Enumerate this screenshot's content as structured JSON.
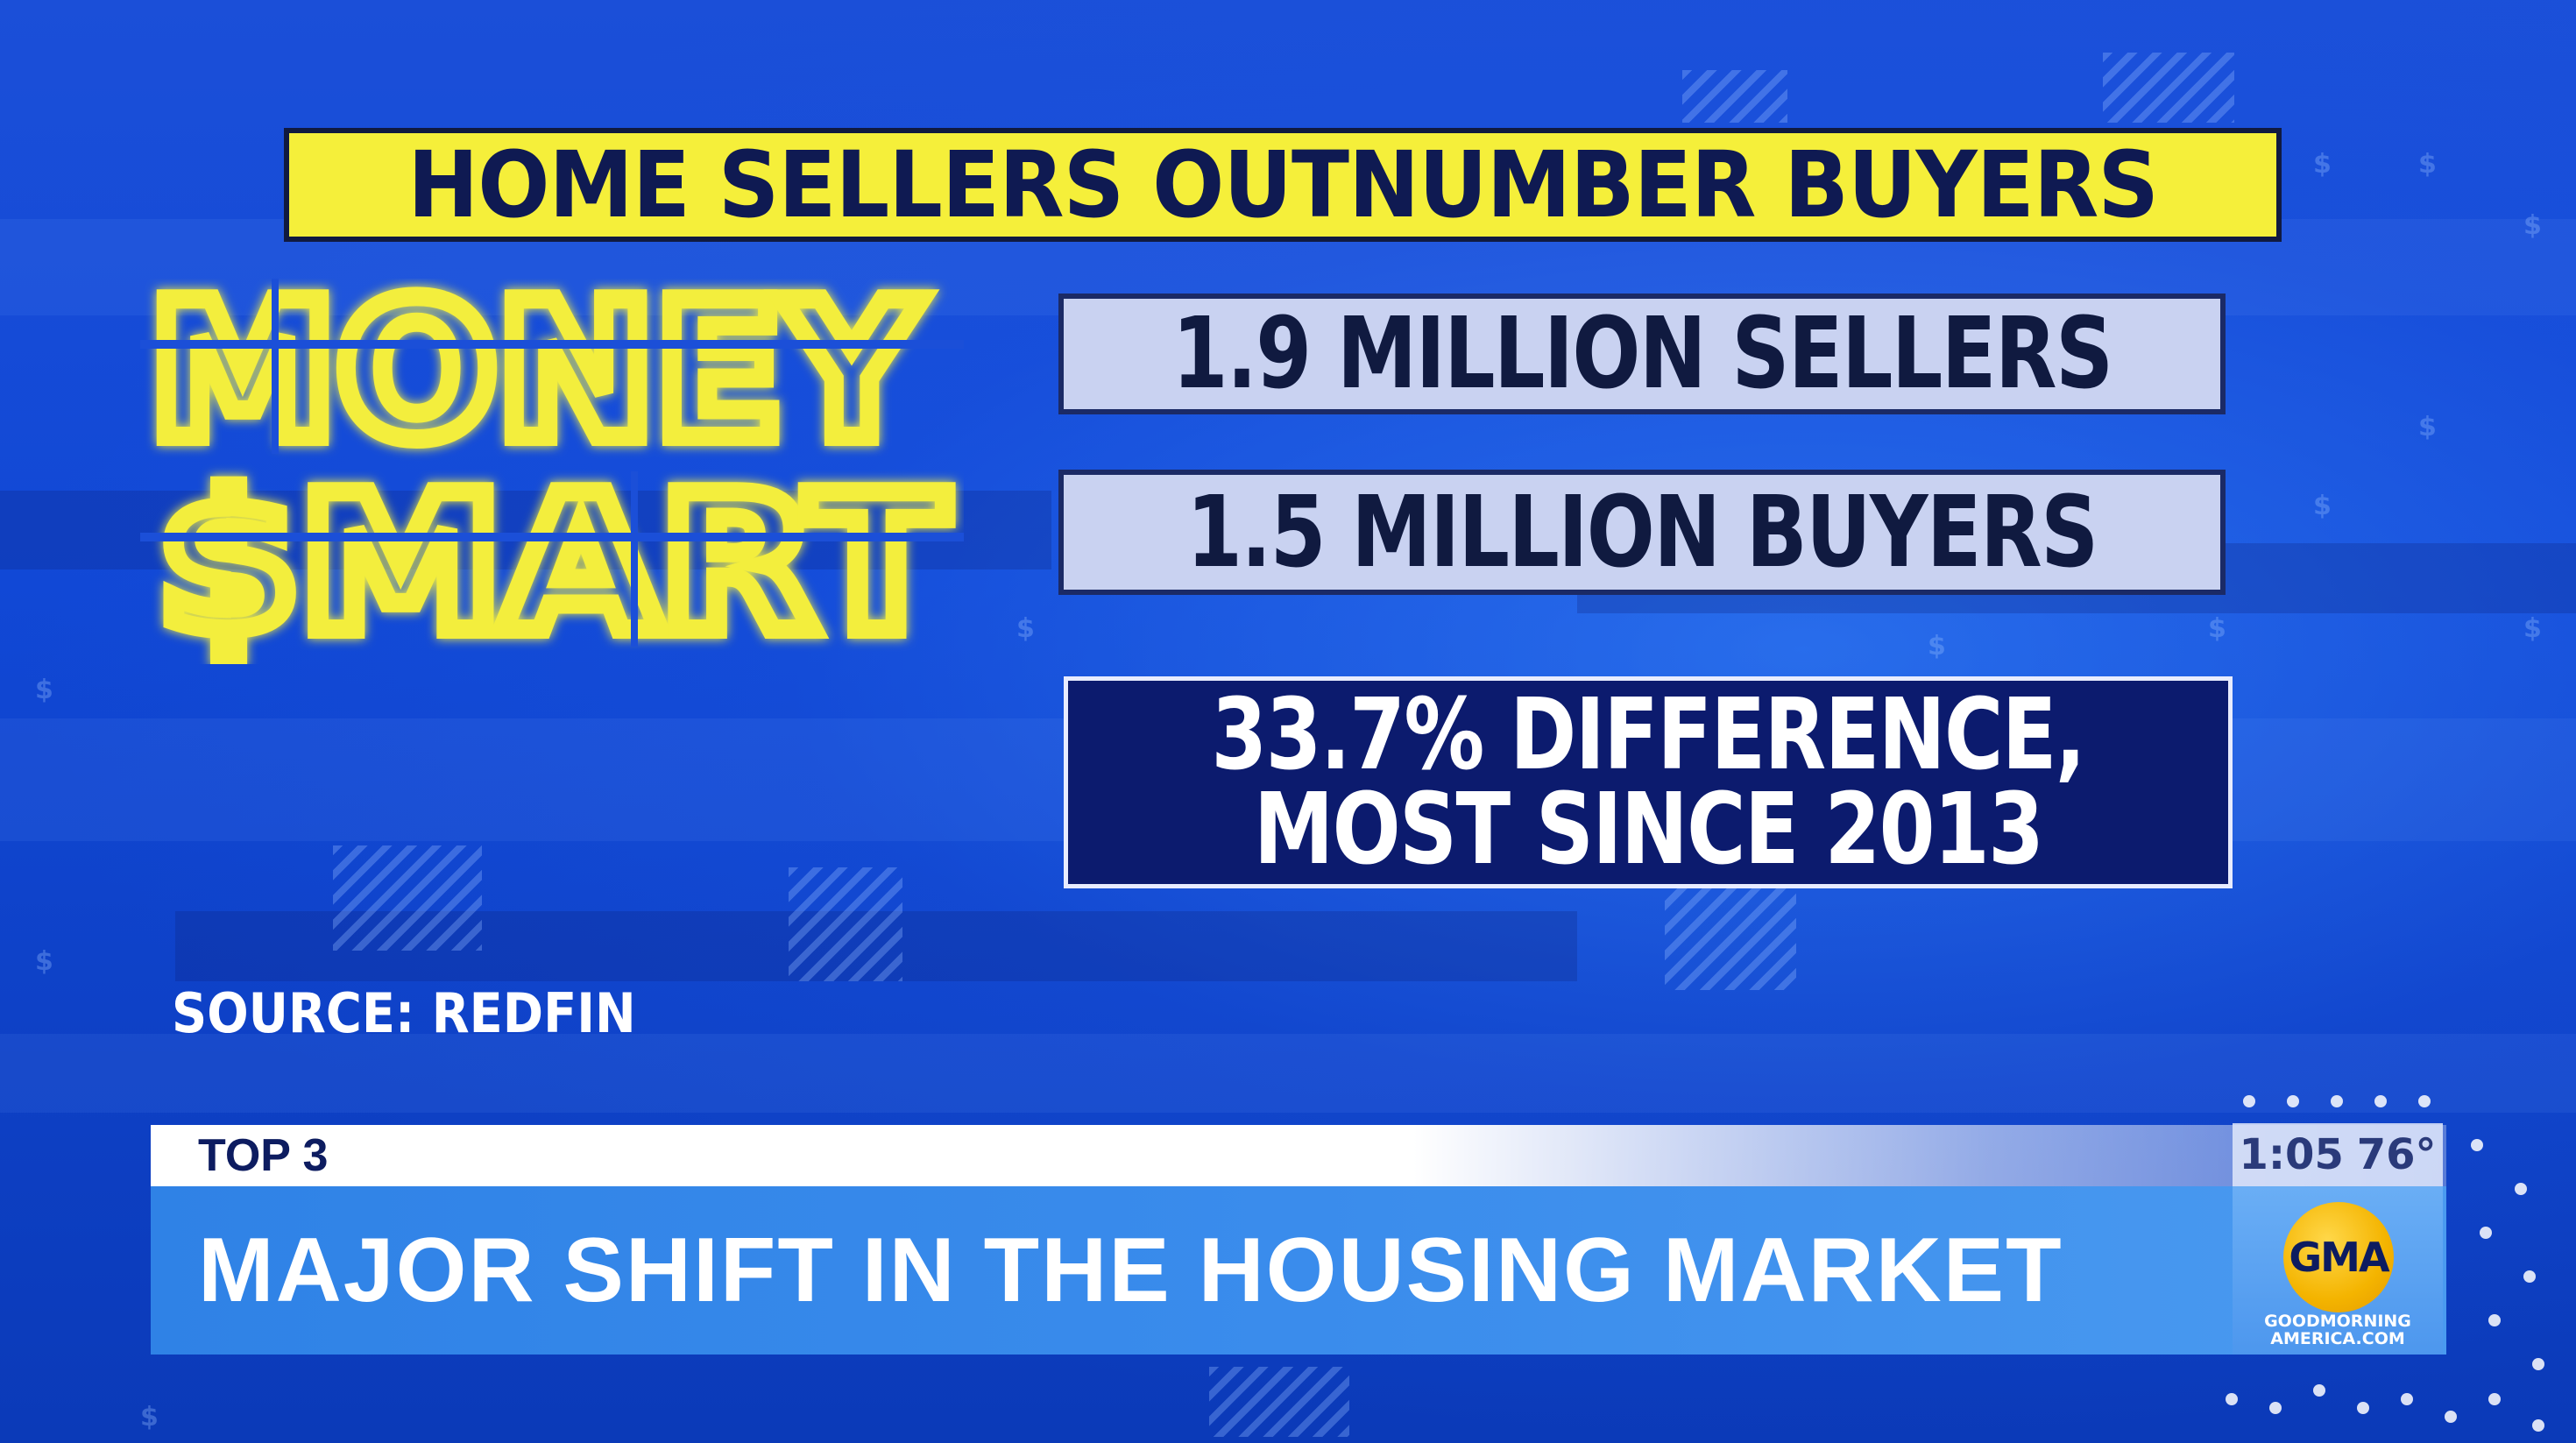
{
  "headline": "HOME SELLERS OUTNUMBER BUYERS",
  "logo": {
    "line1": "MONEY",
    "line2": "$MART",
    "color": "#f3ee3c"
  },
  "stats": [
    {
      "text": "1.9 MILLION SELLERS"
    },
    {
      "text": "1.5 MILLION BUYERS"
    }
  ],
  "highlight": {
    "line1": "33.7% DIFFERENCE,",
    "line2": "MOST SINCE 2013"
  },
  "source": "SOURCE: REDFIN",
  "lower_third": {
    "label": "TOP 3",
    "headline": "MAJOR SHIFT IN THE HOUSING MARKET",
    "time": "1:05",
    "temperature": "76°"
  },
  "network": {
    "logo_text": "GMA",
    "url_line1": "GOODMORNING",
    "url_line2": "AMERICA.COM",
    "brand_color": "#f4b400"
  },
  "colors": {
    "background": "#1148d6",
    "headline_bg": "#f5ef3a",
    "stat_bg": "#c9d2f1",
    "highlight_bg": "#0c1b6e"
  }
}
